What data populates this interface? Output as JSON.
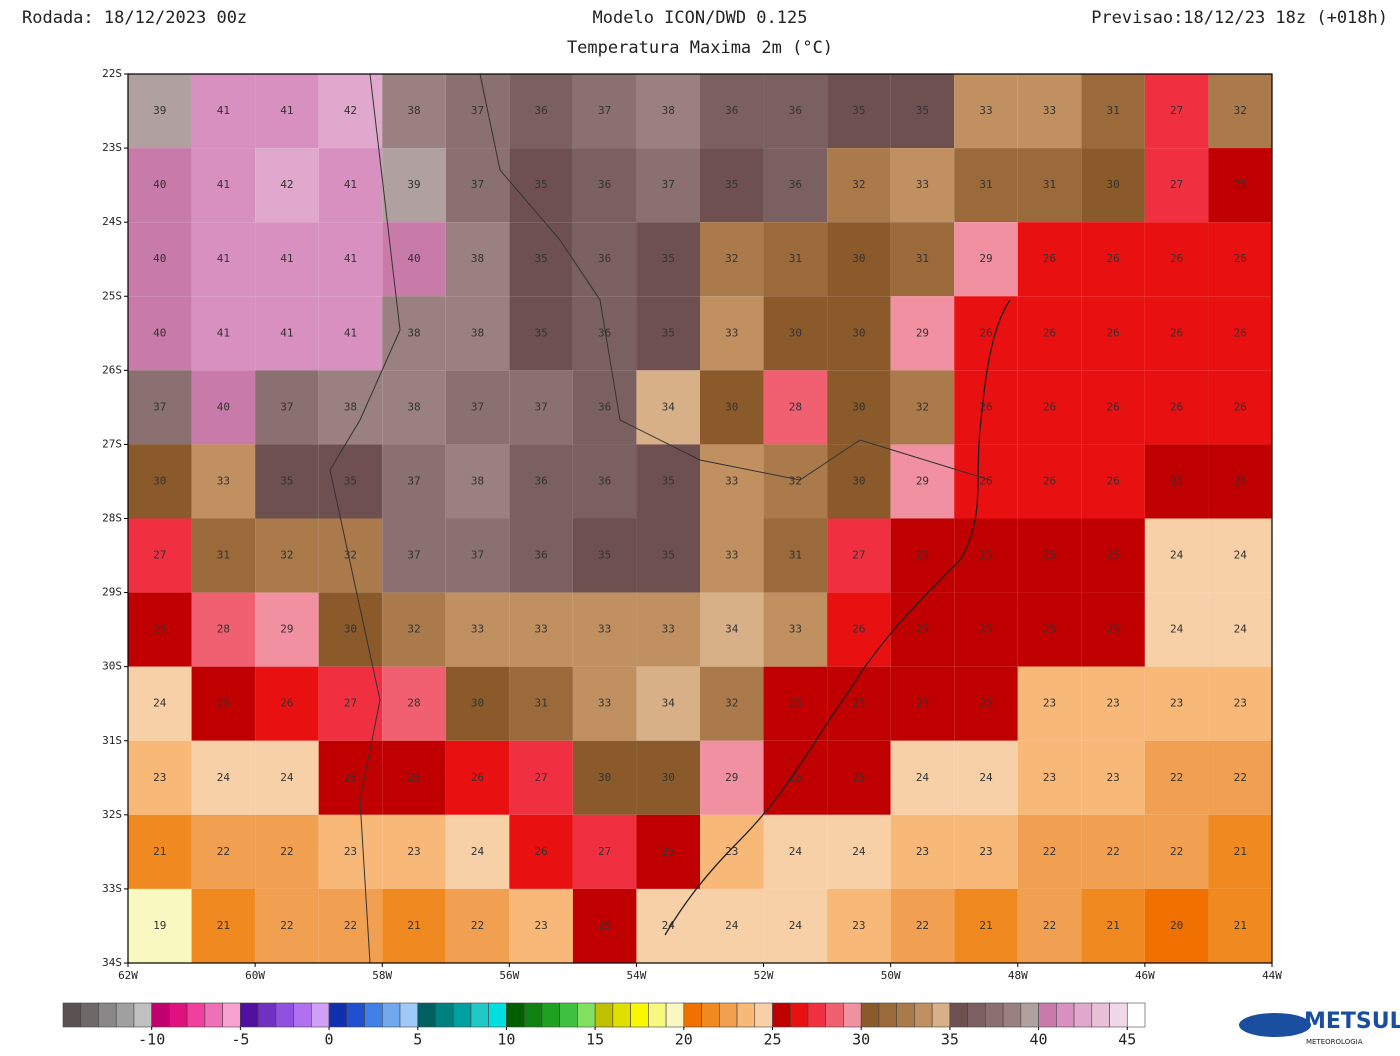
{
  "chart_data": {
    "type": "grid",
    "run_label": "Rodada: 18/12/2023 00z",
    "title": "Modelo ICON/DWD 0.125",
    "subtitle": "Temperatura Maxima 2m (°C)",
    "forecast_label": "Previsao:18/12/23 18z (+018h)",
    "latlim": [
      22,
      34
    ],
    "lonlim": [
      62,
      44
    ],
    "latticks": [
      {
        "value": 22,
        "label": "22S"
      },
      {
        "value": 23,
        "label": "23S"
      },
      {
        "value": 24,
        "label": "24S"
      },
      {
        "value": 25,
        "label": "25S"
      },
      {
        "value": 26,
        "label": "26S"
      },
      {
        "value": 27,
        "label": "27S"
      },
      {
        "value": 28,
        "label": "28S"
      },
      {
        "value": 29,
        "label": "29S"
      },
      {
        "value": 30,
        "label": "30S"
      },
      {
        "value": 31,
        "label": "31S"
      },
      {
        "value": 32,
        "label": "32S"
      },
      {
        "value": 33,
        "label": "33S"
      },
      {
        "value": 34,
        "label": "34S"
      }
    ],
    "lonticks": [
      {
        "value": 62,
        "label": "62W"
      },
      {
        "value": 60,
        "label": "60W"
      },
      {
        "value": 58,
        "label": "58W"
      },
      {
        "value": 56,
        "label": "56W"
      },
      {
        "value": 54,
        "label": "54W"
      },
      {
        "value": 52,
        "label": "52W"
      },
      {
        "value": 50,
        "label": "50W"
      },
      {
        "value": 48,
        "label": "48W"
      },
      {
        "value": 46,
        "label": "46W"
      },
      {
        "value": 44,
        "label": "44W"
      }
    ],
    "lat": [
      22.5,
      23.5,
      24.5,
      25.5,
      26.5,
      27.5,
      28.5,
      29.5,
      30.5,
      31.5,
      32.5,
      33.5
    ],
    "lon": [
      61.5,
      60.5,
      59.5,
      58.5,
      57.5,
      56.5,
      55.5,
      54.5,
      53.5,
      52.5,
      51.5,
      50.5,
      49.5,
      48.5,
      47.5,
      46.5,
      45.5,
      44.5
    ],
    "values": [
      [
        39,
        41,
        41,
        42,
        38,
        37,
        36,
        37,
        38,
        36,
        36,
        35,
        35,
        33,
        33,
        31,
        27,
        32
      ],
      [
        40,
        41,
        42,
        41,
        39,
        37,
        35,
        36,
        37,
        35,
        36,
        32,
        33,
        31,
        31,
        30,
        27,
        25
      ],
      [
        40,
        41,
        41,
        41,
        40,
        38,
        35,
        36,
        35,
        32,
        31,
        30,
        31,
        29,
        26,
        26,
        26,
        26
      ],
      [
        40,
        41,
        41,
        41,
        38,
        38,
        35,
        36,
        35,
        33,
        30,
        30,
        29,
        26,
        26,
        26,
        26,
        26
      ],
      [
        37,
        40,
        37,
        38,
        38,
        37,
        37,
        36,
        34,
        30,
        28,
        30,
        32,
        26,
        26,
        26,
        26,
        26
      ],
      [
        30,
        33,
        35,
        35,
        37,
        38,
        36,
        36,
        35,
        33,
        32,
        30,
        29,
        26,
        26,
        26,
        25,
        25
      ],
      [
        27,
        31,
        32,
        32,
        37,
        37,
        36,
        35,
        35,
        33,
        31,
        27,
        25,
        25,
        25,
        25,
        24,
        24
      ],
      [
        25,
        28,
        29,
        30,
        32,
        33,
        33,
        33,
        33,
        34,
        33,
        26,
        25,
        25,
        25,
        25,
        24,
        24
      ],
      [
        24,
        25,
        26,
        27,
        28,
        30,
        31,
        33,
        34,
        32,
        25,
        25,
        25,
        25,
        23,
        23,
        23,
        23
      ],
      [
        23,
        24,
        24,
        25,
        25,
        26,
        27,
        30,
        30,
        29,
        25,
        25,
        24,
        24,
        23,
        23,
        22,
        22
      ],
      [
        21,
        22,
        22,
        23,
        23,
        24,
        26,
        27,
        25,
        23,
        24,
        24,
        23,
        23,
        22,
        22,
        22,
        21
      ],
      [
        19,
        21,
        22,
        22,
        21,
        22,
        23,
        25,
        24,
        24,
        24,
        23,
        22,
        21,
        22,
        21,
        20,
        21
      ]
    ],
    "colorbar": {
      "lim": [
        -15,
        46
      ],
      "ticks": [
        -10,
        -5,
        0,
        5,
        10,
        15,
        20,
        25,
        30,
        35,
        40,
        45
      ],
      "colors": [
        "#5a5252",
        "#6e6868",
        "#888888",
        "#a0a0a0",
        "#c0c0c0",
        "#c0006e",
        "#e0107e",
        "#f0409e",
        "#f070b8",
        "#f8a0d0",
        "#5010a0",
        "#7030c0",
        "#9050e0",
        "#b070f0",
        "#d0a0f8",
        "#1030b0",
        "#2050d0",
        "#4080e8",
        "#70a8f0",
        "#a0c8f8",
        "#006060",
        "#008080",
        "#00a0a0",
        "#20c8c8",
        "#00e0e0",
        "#006000",
        "#108010",
        "#20a020",
        "#40c040",
        "#80e060",
        "#c0c000",
        "#e0e000",
        "#f8f800",
        "#f8f880",
        "#f8f8c0",
        "#f07000",
        "#f08a20",
        "#f0a050",
        "#f8b878",
        "#f8d0a8",
        "#c00000",
        "#e81010",
        "#f03040",
        "#f06070",
        "#f090a0",
        "#8b5a2b",
        "#9a6a3a",
        "#aa7a4a",
        "#c09060",
        "#d8b088",
        "#6e5050",
        "#7a6060",
        "#8a7070",
        "#9a8080",
        "#b0a0a0",
        "#c87aa8",
        "#d890c0",
        "#e0a8cc",
        "#e8c0d8",
        "#f0d8e8",
        "#ffffff"
      ]
    },
    "logo": {
      "name": "METSUL",
      "tagline": "METEOROLOGIA"
    }
  }
}
